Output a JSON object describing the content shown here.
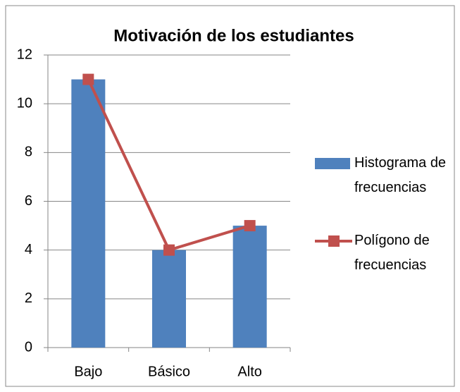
{
  "chart_data": {
    "type": "bar",
    "title": "Motivación de los estudiantes",
    "categories": [
      "Bajo",
      "Básico",
      "Alto"
    ],
    "series": [
      {
        "name": "Histograma de frecuencias",
        "type": "bar",
        "color": "#4f81bd",
        "values": [
          11,
          4,
          5
        ]
      },
      {
        "name": "Polígono de frecuencias",
        "type": "line",
        "color": "#c0504d",
        "values": [
          11,
          4,
          5
        ]
      }
    ],
    "ylim": [
      0,
      12
    ],
    "yticks": [
      0,
      2,
      4,
      6,
      8,
      10,
      12
    ],
    "grid": true,
    "legend": "right"
  }
}
